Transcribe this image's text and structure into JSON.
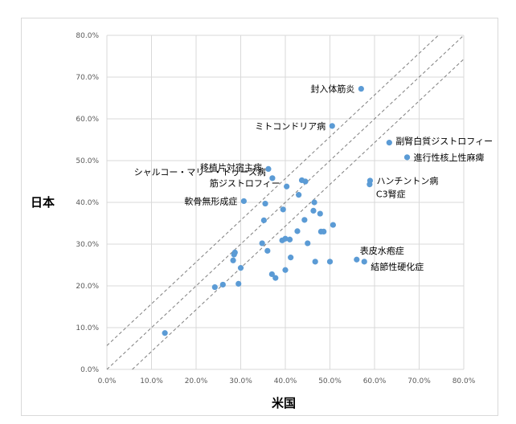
{
  "chart_data": {
    "type": "scatter",
    "title": "",
    "xlabel": "米国",
    "ylabel": "日本",
    "xlim": [
      0,
      0.8
    ],
    "ylim": [
      0,
      0.8
    ],
    "x_ticks": [
      "0.0%",
      "10.0%",
      "20.0%",
      "30.0%",
      "40.0%",
      "50.0%",
      "60.0%",
      "70.0%",
      "80.0%"
    ],
    "y_ticks": [
      "0.0%",
      "10.0%",
      "20.0%",
      "30.0%",
      "40.0%",
      "50.0%",
      "60.0%",
      "70.0%",
      "80.0%"
    ],
    "grid": true,
    "point_color": "#5b9bd5",
    "reference_line_color": "#7f7f7f",
    "reference_lines": [
      {
        "slope": 1,
        "intercept": 0.057
      },
      {
        "slope": 1,
        "intercept": 0
      },
      {
        "slope": 1,
        "intercept": -0.057
      }
    ],
    "points": [
      {
        "x": 0.13,
        "y": 0.087
      },
      {
        "x": 0.242,
        "y": 0.197
      },
      {
        "x": 0.26,
        "y": 0.203
      },
      {
        "x": 0.283,
        "y": 0.261
      },
      {
        "x": 0.285,
        "y": 0.275
      },
      {
        "x": 0.287,
        "y": 0.28
      },
      {
        "x": 0.295,
        "y": 0.205
      },
      {
        "x": 0.3,
        "y": 0.243
      },
      {
        "x": 0.307,
        "y": 0.403,
        "label": "軟骨無形成症"
      },
      {
        "x": 0.348,
        "y": 0.302
      },
      {
        "x": 0.352,
        "y": 0.357
      },
      {
        "x": 0.355,
        "y": 0.397
      },
      {
        "x": 0.36,
        "y": 0.284
      },
      {
        "x": 0.362,
        "y": 0.48,
        "label": "移植片対宿主病"
      },
      {
        "x": 0.37,
        "y": 0.228
      },
      {
        "x": 0.371,
        "y": 0.458,
        "label": "シャルコー・マリー・トゥース病"
      },
      {
        "x": 0.378,
        "y": 0.219
      },
      {
        "x": 0.393,
        "y": 0.309
      },
      {
        "x": 0.395,
        "y": 0.383
      },
      {
        "x": 0.4,
        "y": 0.313
      },
      {
        "x": 0.4,
        "y": 0.238
      },
      {
        "x": 0.403,
        "y": 0.438,
        "label": "筋ジストロフィー"
      },
      {
        "x": 0.41,
        "y": 0.311
      },
      {
        "x": 0.412,
        "y": 0.268
      },
      {
        "x": 0.427,
        "y": 0.331
      },
      {
        "x": 0.43,
        "y": 0.418
      },
      {
        "x": 0.437,
        "y": 0.453
      },
      {
        "x": 0.443,
        "y": 0.358
      },
      {
        "x": 0.445,
        "y": 0.45
      },
      {
        "x": 0.45,
        "y": 0.302
      },
      {
        "x": 0.463,
        "y": 0.38
      },
      {
        "x": 0.465,
        "y": 0.4
      },
      {
        "x": 0.467,
        "y": 0.258
      },
      {
        "x": 0.478,
        "y": 0.373
      },
      {
        "x": 0.48,
        "y": 0.33
      },
      {
        "x": 0.486,
        "y": 0.33
      },
      {
        "x": 0.5,
        "y": 0.258
      },
      {
        "x": 0.505,
        "y": 0.583,
        "label": "ミトコンドリア病"
      },
      {
        "x": 0.507,
        "y": 0.346
      },
      {
        "x": 0.56,
        "y": 0.263,
        "label": "表皮水疱症"
      },
      {
        "x": 0.57,
        "y": 0.672,
        "label": "封入体筋炎"
      },
      {
        "x": 0.577,
        "y": 0.258,
        "label": "結節性硬化症"
      },
      {
        "x": 0.589,
        "y": 0.443,
        "label": "C3腎症"
      },
      {
        "x": 0.59,
        "y": 0.452,
        "label": "ハンチントン病"
      },
      {
        "x": 0.633,
        "y": 0.543,
        "label": "副腎白質ジストロフィー"
      },
      {
        "x": 0.673,
        "y": 0.508,
        "label": "進行性核上性麻痺"
      }
    ]
  }
}
